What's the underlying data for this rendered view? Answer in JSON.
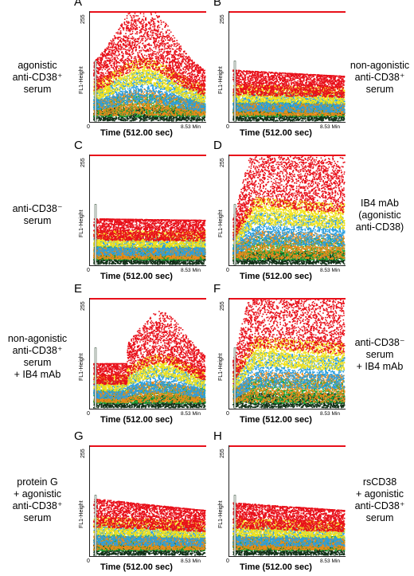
{
  "axis": {
    "y_max": "255",
    "y_label": "FL1-Height",
    "x_zero": "0",
    "x_end": "8.53 Min",
    "x_label": "Time (512.00 sec)"
  },
  "panels": [
    {
      "letter": "A",
      "lines": [
        "agonistic",
        "anti-CD38⁺",
        "serum"
      ]
    },
    {
      "letter": "B",
      "lines": [
        "non-agonistic",
        "anti-CD38⁺",
        "serum"
      ]
    },
    {
      "letter": "C",
      "lines": [
        "anti-CD38⁻",
        "serum"
      ]
    },
    {
      "letter": "D",
      "lines": [
        "IB4 mAb",
        "(agonistic",
        "anti-CD38)"
      ]
    },
    {
      "letter": "E",
      "lines": [
        "non-agonistic",
        "anti-CD38⁺",
        "serum",
        "+ IB4 mAb"
      ]
    },
    {
      "letter": "F",
      "lines": [
        "anti-CD38⁻",
        "serum",
        "+ IB4 mAb"
      ]
    },
    {
      "letter": "G",
      "lines": [
        "protein G",
        "+ agonistic",
        "anti-CD38⁺",
        "serum"
      ]
    },
    {
      "letter": "H",
      "lines": [
        "rsCD38",
        "+ agonistic",
        "anti-CD38⁺",
        "serum"
      ]
    }
  ],
  "colors": {
    "red": "#e8101a",
    "yellow": "#f2e21a",
    "blue": "#2a9fe0",
    "green": "#1fa83a",
    "orange": "#e88a1a",
    "dark": "#123018"
  }
}
